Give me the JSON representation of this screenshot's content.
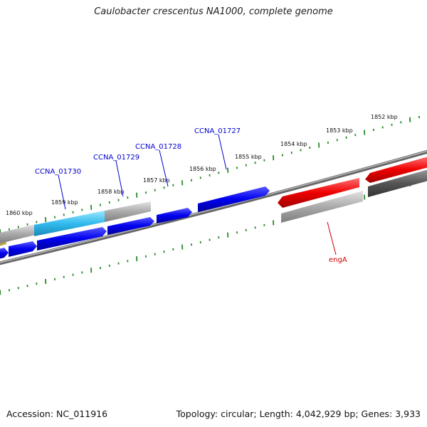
{
  "title": "Caulobacter crescentus NA1000, complete genome",
  "footer": {
    "accession": "Accession: NC_011916",
    "summary": "Topology: circular; Length: 4,042,929 bp; Genes: 3,933"
  },
  "ruler": {
    "unit": "kbp",
    "labels": [
      "1860 kbp",
      "1859 kbp",
      "1858 kbp",
      "1857 kbp",
      "1856 kbp",
      "1855 kbp",
      "1854 kbp",
      "1853 kbp",
      "1852 kbp"
    ]
  },
  "gene_labels": [
    {
      "text": "CCNA_01730",
      "color": "#0000cc"
    },
    {
      "text": "CCNA_01729",
      "color": "#0000cc"
    },
    {
      "text": "CCNA_01728",
      "color": "#0000cc"
    },
    {
      "text": "CCNA_01727",
      "color": "#0000cc"
    },
    {
      "text": "engA",
      "color": "#cc0000"
    }
  ],
  "colors": {
    "forward_gene": "#0000ee",
    "highlight_gene": "#33bbee",
    "reverse_gene": "#ee0000",
    "grey_feature": "#aaaaaa",
    "dark_feature": "#555555",
    "backbone": "#777777",
    "tick": "#2a8a2a",
    "olive_feature": "#c8b84a"
  }
}
